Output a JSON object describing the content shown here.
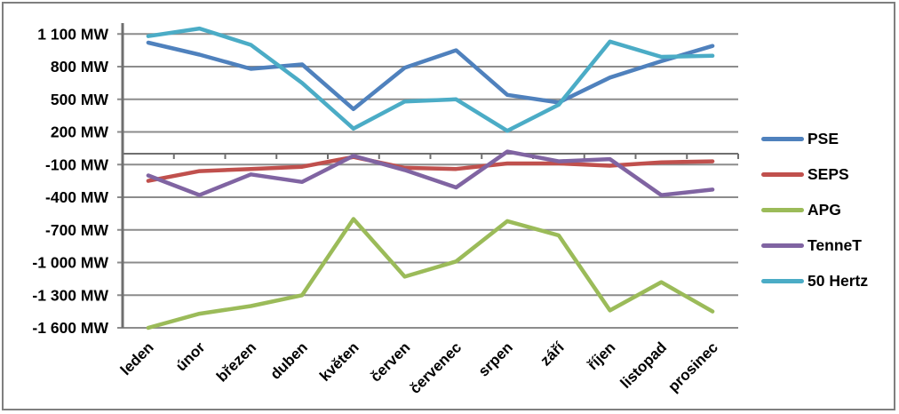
{
  "chart_data": {
    "type": "line",
    "title": "",
    "unit": "MW",
    "categories": [
      "leden",
      "únor",
      "březen",
      "duben",
      "květen",
      "červen",
      "červenec",
      "srpen",
      "září",
      "říjen",
      "listopad",
      "prosinec"
    ],
    "series": [
      {
        "name": "PSE",
        "color": "#4F81BD",
        "values": [
          1020,
          910,
          780,
          820,
          410,
          790,
          950,
          540,
          470,
          700,
          850,
          990
        ]
      },
      {
        "name": "SEPS",
        "color": "#C0504D",
        "values": [
          -250,
          -160,
          -140,
          -120,
          -30,
          -130,
          -140,
          -90,
          -90,
          -110,
          -80,
          -70
        ]
      },
      {
        "name": "APG",
        "color": "#9BBB59",
        "values": [
          -1600,
          -1470,
          -1400,
          -1300,
          -600,
          -1130,
          -990,
          -620,
          -750,
          -1440,
          -1180,
          -1450
        ]
      },
      {
        "name": "TenneT",
        "color": "#8064A2",
        "values": [
          -200,
          -380,
          -190,
          -260,
          -20,
          -150,
          -310,
          20,
          -70,
          -50,
          -380,
          -330
        ]
      },
      {
        "name": "50 Hertz",
        "color": "#4BACC6",
        "values": [
          1080,
          1150,
          1000,
          650,
          230,
          480,
          500,
          210,
          450,
          1030,
          890,
          900
        ]
      }
    ],
    "y_axis": {
      "min": -1600,
      "max": 1200,
      "tick_interval": 300,
      "axis_crosses_at": 0,
      "tick_values": [
        1100,
        800,
        500,
        200,
        -100,
        -400,
        -700,
        -1000,
        -1300,
        -1600
      ],
      "tick_labels": [
        "1 100 MW",
        "800 MW",
        "500 MW",
        "200 MW",
        "-100 MW",
        "-400 MW",
        "-700 MW",
        "-1 000 MW",
        "-1 300 MW",
        "-1 600 MW"
      ]
    },
    "x_axis": {
      "label_rotation": -45
    },
    "legend": {
      "position": "right",
      "entries": [
        "PSE",
        "SEPS",
        "APG",
        "TenneT",
        "50 Hertz"
      ]
    },
    "grid": true,
    "colors": {
      "gridline": "#8C8C8C",
      "axis": "#6F6F6F",
      "background": "#FFFFFF",
      "border": "#7F7F7F"
    }
  }
}
